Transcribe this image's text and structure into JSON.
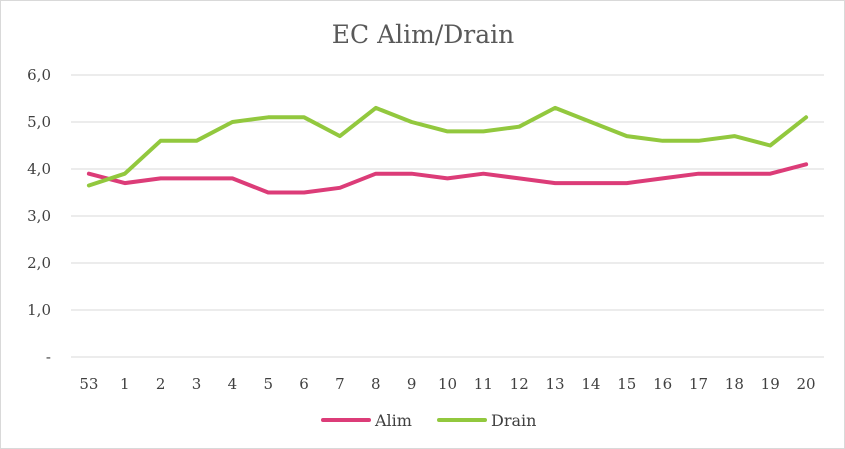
{
  "chart_data": {
    "type": "line",
    "title": "EC Alim/Drain",
    "categories": [
      "53",
      "1",
      "2",
      "3",
      "4",
      "5",
      "6",
      "7",
      "8",
      "9",
      "10",
      "11",
      "12",
      "13",
      "14",
      "15",
      "16",
      "17",
      "18",
      "19",
      "20"
    ],
    "series": [
      {
        "name": "Alim",
        "color": "#dc3c78",
        "values": [
          3.9,
          3.7,
          3.8,
          3.8,
          3.8,
          3.5,
          3.5,
          3.6,
          3.9,
          3.9,
          3.8,
          3.9,
          3.8,
          3.7,
          3.7,
          3.7,
          3.8,
          3.9,
          3.9,
          3.9,
          4.1
        ]
      },
      {
        "name": "Drain",
        "color": "#92c83e",
        "values": [
          3.65,
          3.9,
          4.6,
          4.6,
          5.0,
          5.1,
          5.1,
          4.7,
          5.3,
          5.0,
          4.8,
          4.8,
          4.9,
          5.3,
          5.0,
          4.7,
          4.6,
          4.6,
          4.7,
          4.5,
          5.1
        ]
      }
    ],
    "ylim": [
      0,
      6
    ],
    "yticks": [
      0,
      1,
      2,
      3,
      4,
      5,
      6
    ],
    "ytick_labels": [
      "-",
      "1,0",
      "2,0",
      "3,0",
      "4,0",
      "5,0",
      "6,0"
    ],
    "grid": true,
    "legend_position": "bottom"
  }
}
